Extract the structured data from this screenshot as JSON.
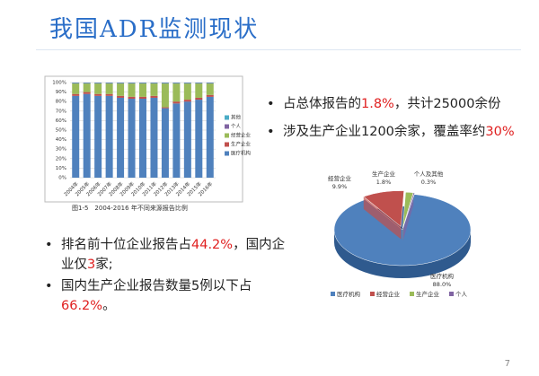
{
  "title": "我国ADR监测现状",
  "page_number": "7",
  "caption": "图1-5　2004-2016 年不同来源报告比例",
  "right_bullets": [
    {
      "runs": [
        {
          "text": "占总体报告的"
        },
        {
          "text": "1.8%",
          "red": true
        },
        {
          "text": "，共计25000余份"
        }
      ]
    },
    {
      "runs": [
        {
          "text": "涉及生产企业1200余家，覆盖率约"
        },
        {
          "text": "30%",
          "red": true
        }
      ]
    }
  ],
  "left_bullets": [
    {
      "runs": [
        {
          "text": "排名前十位企业报告占"
        },
        {
          "text": "44.2%",
          "red": true
        },
        {
          "text": "，国内企业仅"
        },
        {
          "text": "3",
          "red": true
        },
        {
          "text": "家;"
        }
      ]
    },
    {
      "runs": [
        {
          "text": "国内生产企业报告数量5例以下占"
        },
        {
          "text": "66.2%",
          "red": true
        },
        {
          "text": "。"
        }
      ]
    }
  ],
  "chart_data": [
    {
      "type": "stacked-bar",
      "categories": [
        "2004年",
        "2005年",
        "2006年",
        "2007年",
        "2008年",
        "2009年",
        "2010年",
        "2011年",
        "2012年",
        "2013年",
        "2014年",
        "2015年",
        "2016年"
      ],
      "series": [
        {
          "name": "医疗机构",
          "color": "#4f81bd",
          "values": [
            86,
            88,
            86,
            86,
            84,
            83,
            83,
            84,
            73,
            78,
            80,
            82,
            85
          ]
        },
        {
          "name": "生产企业",
          "color": "#c0504d",
          "values": [
            2,
            2,
            2,
            2,
            2,
            2,
            2,
            2,
            1,
            2,
            2,
            2,
            2
          ]
        },
        {
          "name": "经营企业",
          "color": "#9bbb59",
          "values": [
            11,
            9,
            11,
            11,
            13,
            14,
            14,
            13,
            25,
            19,
            17,
            15,
            12
          ]
        },
        {
          "name": "个人",
          "color": "#8064a2",
          "values": [
            0.5,
            0.5,
            0.5,
            0.5,
            0.5,
            0.5,
            0.5,
            0.5,
            0.5,
            0.5,
            0.5,
            0.5,
            0.5
          ]
        },
        {
          "name": "其他",
          "color": "#4bacc6",
          "values": [
            0.5,
            0.5,
            0.5,
            0.5,
            0.5,
            0.5,
            0.5,
            0.5,
            0.5,
            0.5,
            0.5,
            0.5,
            0.5
          ]
        }
      ],
      "ylim": [
        0,
        100
      ],
      "yticks": [
        {
          "value": 0,
          "label": "0%"
        },
        {
          "value": 10,
          "label": "10%"
        },
        {
          "value": 20,
          "label": "20%"
        },
        {
          "value": 30,
          "label": "30%"
        },
        {
          "value": 40,
          "label": "40%"
        },
        {
          "value": 50,
          "label": "50%"
        },
        {
          "value": 60,
          "label": "60%"
        },
        {
          "value": 70,
          "label": "70%"
        },
        {
          "value": 80,
          "label": "80%"
        },
        {
          "value": 90,
          "label": "90%"
        },
        {
          "value": 100,
          "label": "100%"
        }
      ],
      "grid": true
    },
    {
      "type": "pie",
      "categories": [
        "医疗机构",
        "经营企业",
        "生产企业",
        "个人"
      ],
      "labels": [
        "医疗机构",
        "经营企业",
        "生产企业",
        "个人及其他"
      ],
      "values": [
        88.0,
        9.9,
        1.8,
        0.3
      ],
      "value_labels": [
        "88.0%",
        "9.9%",
        "1.8%",
        "0.3%"
      ],
      "colors": [
        "#4f81bd",
        "#c0504d",
        "#9bbb59",
        "#8064a2"
      ]
    }
  ]
}
